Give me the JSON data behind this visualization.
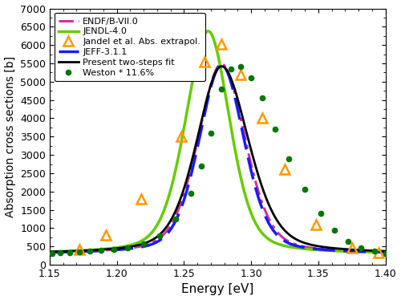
{
  "xlim": [
    1.15,
    1.4
  ],
  "ylim": [
    0,
    7000
  ],
  "xlabel": "Energy [eV]",
  "ylabel": "Absorption cross sections [b]",
  "xticks": [
    1.15,
    1.2,
    1.25,
    1.3,
    1.35,
    1.4
  ],
  "yticks": [
    0,
    500,
    1000,
    1500,
    2000,
    2500,
    3000,
    3500,
    4000,
    4500,
    5000,
    5500,
    6000,
    6500,
    7000
  ],
  "colors": {
    "endf": "#cc3399",
    "jendl": "#66cc00",
    "jandel": "#ff9900",
    "jeff": "#1a1aff",
    "present": "#000000",
    "weston": "#007700"
  },
  "legend_labels": [
    "ENDF/B-VII.0",
    "JENDL-4.0",
    "Jandel et al. Abs. extrapol.",
    "JEFF-3.1.1",
    "Present two-steps fit",
    "Weston * 11.6%"
  ],
  "jandel_E": [
    1.172,
    1.192,
    1.218,
    1.248,
    1.265,
    1.278,
    1.292,
    1.308,
    1.325,
    1.348,
    1.375,
    1.395
  ],
  "jandel_vals": [
    410,
    820,
    1800,
    3500,
    5550,
    6020,
    5200,
    4000,
    2600,
    1100,
    470,
    320
  ],
  "weston_E": [
    1.152,
    1.158,
    1.165,
    1.172,
    1.18,
    1.188,
    1.198,
    1.208,
    1.22,
    1.232,
    1.244,
    1.255,
    1.263,
    1.27,
    1.278,
    1.285,
    1.292,
    1.3,
    1.308,
    1.318,
    1.328,
    1.34,
    1.352,
    1.362,
    1.372,
    1.382,
    1.392,
    1.4
  ],
  "weston_vals": [
    310,
    330,
    340,
    360,
    370,
    390,
    410,
    450,
    560,
    800,
    1250,
    1950,
    2700,
    3600,
    4800,
    5350,
    5420,
    5100,
    4550,
    3700,
    2900,
    2050,
    1400,
    950,
    640,
    470,
    370,
    310
  ]
}
